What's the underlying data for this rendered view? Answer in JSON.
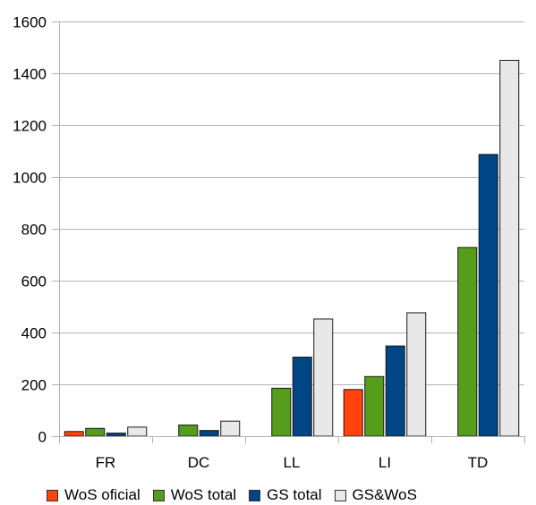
{
  "chart_data": {
    "type": "bar",
    "categories": [
      "FR",
      "DC",
      "LL",
      "LI",
      "TD"
    ],
    "series": [
      {
        "name": "WoS oficial",
        "color": "#ff420e",
        "values": [
          18,
          0,
          0,
          180,
          0
        ]
      },
      {
        "name": "WoS total",
        "color": "#579d1c",
        "values": [
          30,
          43,
          185,
          230,
          728
        ]
      },
      {
        "name": "GS total",
        "color": "#004586",
        "values": [
          12,
          22,
          305,
          348,
          1087
        ]
      },
      {
        "name": "GS&WoS",
        "color": "#e8e8e8",
        "values": [
          35,
          58,
          452,
          476,
          1450
        ]
      }
    ],
    "yticks": [
      "0",
      "200",
      "400",
      "600",
      "800",
      "1000",
      "1200",
      "1400",
      "1600"
    ],
    "ylim": [
      0,
      1600
    ],
    "grid": true,
    "legend_position": "bottom"
  }
}
